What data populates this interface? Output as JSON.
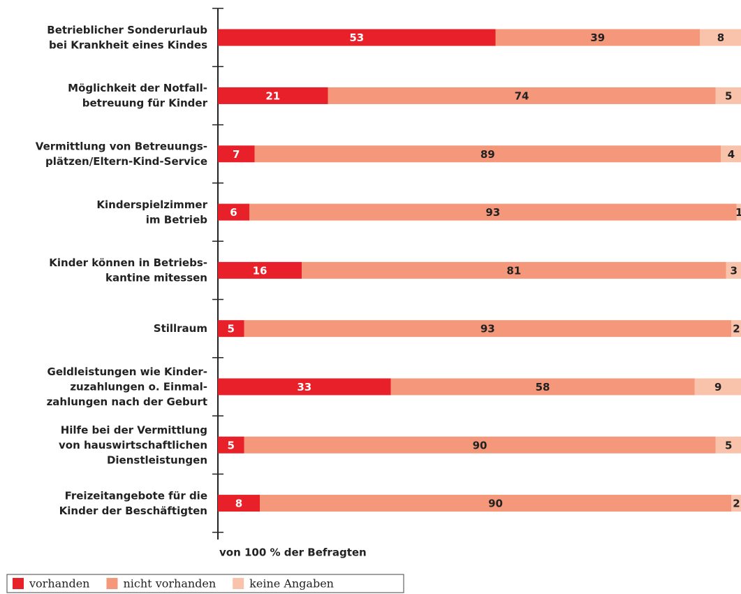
{
  "chart_data": {
    "type": "stacked-bar-horizontal",
    "categories": [
      "Betrieblicher Sonderurlaub\nbei Krankheit eines Kindes",
      "Möglichkeit der Notfall-\nbetreuung für Kinder",
      "Vermittlung von Betreuungs-\nplätzen/Eltern-Kind-Service",
      "Kinderspielzimmer\nim Betrieb",
      "Kinder können in Betriebs-\nkantine mitessen",
      "Stillraum",
      "Geldleistungen wie Kinder-\nzuzahlungen o. Einmal-\nzahlungen nach der Geburt",
      "Hilfe bei der Vermittlung\nvon hauswirtschaftlichen\nDienstleistungen",
      "Freizeitangebote für die\nKinder der Beschäftigten"
    ],
    "series": [
      {
        "name": "vorhanden",
        "color": "#e8202a",
        "values": [
          53,
          21,
          7,
          6,
          16,
          5,
          33,
          5,
          8
        ]
      },
      {
        "name": "nicht vorhanden",
        "color": "#f4977a",
        "values": [
          39,
          74,
          89,
          93,
          81,
          93,
          58,
          90,
          90
        ]
      },
      {
        "name": "keine Angaben",
        "color": "#f9c3ab",
        "values": [
          8,
          5,
          4,
          1,
          3,
          2,
          9,
          5,
          2
        ]
      }
    ],
    "xlim": [
      0,
      100
    ],
    "x_label": "von 100 % der Befragten"
  }
}
